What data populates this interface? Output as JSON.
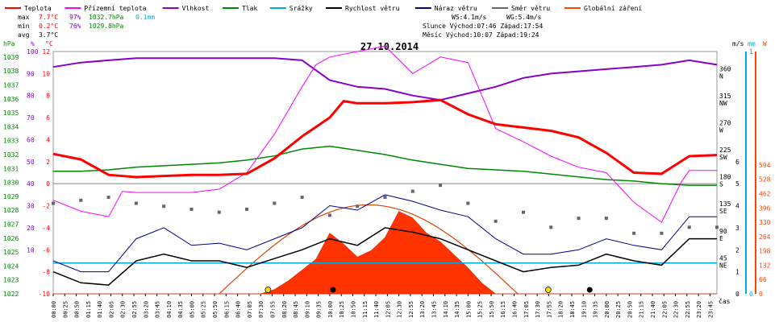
{
  "chart_data": {
    "type": "line",
    "title": "27.10.2014",
    "legend": [
      {
        "name": "Teplota",
        "color": "#ff0000"
      },
      {
        "name": "Přízemní teplota",
        "color": "#ff00ff"
      },
      {
        "name": "Vlhkost",
        "color": "#8800cc"
      },
      {
        "name": "Tlak",
        "color": "#008800"
      },
      {
        "name": "Srážky",
        "color": "#00aadd"
      },
      {
        "name": "Rychlost větru",
        "color": "#000000"
      },
      {
        "name": "Náraz větru",
        "color": "#000088"
      },
      {
        "name": "Směr větru",
        "color": "#666666"
      },
      {
        "name": "Globální záření",
        "color": "#ff4400"
      }
    ],
    "stats": {
      "max": {
        "label": "max",
        "temp": "7.7°C",
        "hum": "97%",
        "press": "1032.7hPa",
        "rain": "0.1mm"
      },
      "min": {
        "label": "min",
        "temp": "0.2°C",
        "hum": "76%",
        "press": "1029.8hPa"
      },
      "avg": {
        "label": "avg",
        "temp": "3.7°C"
      }
    },
    "wind_info": {
      "ws": "WS:4.1m/s",
      "wg": "WG:5.4m/s"
    },
    "sun_info": "Slunce Východ:07:46  Západ:17:54",
    "moon_info": "Měsíc  Východ:10:07  Západ:19:24",
    "axes": {
      "hpa_label": "hPa",
      "pct_label": "%",
      "c_label": "°C",
      "ms_label": "m/s",
      "mm_label": "mm",
      "w_label": "W",
      "time_label": "čas",
      "hpa_ticks": [
        "1039",
        "1038",
        "1037",
        "1036",
        "1035",
        "1034",
        "1033",
        "1032",
        "1031",
        "1030",
        "1029",
        "1028",
        "1027",
        "1026",
        "1025",
        "1024",
        "1023",
        "1022"
      ],
      "pct_ticks": [
        "100",
        "90",
        "80",
        "70",
        "60",
        "50",
        "40",
        "30",
        "20",
        "10"
      ],
      "temp_ticks": [
        "12",
        "10",
        "8",
        "6",
        "4",
        "2",
        "0",
        "-2",
        "-4",
        "-6",
        "-8",
        "-10"
      ],
      "dir_ticks": [
        {
          "deg": "360",
          "dir": "N"
        },
        {
          "deg": "315",
          "dir": "NW"
        },
        {
          "deg": "270",
          "dir": "W"
        },
        {
          "deg": "225",
          "dir": "SW"
        },
        {
          "deg": "180",
          "dir": "S"
        },
        {
          "deg": "135",
          "dir": "SE"
        },
        {
          "deg": "90",
          "dir": "E"
        },
        {
          "deg": "45",
          "dir": "NE"
        }
      ],
      "ms_ticks": [
        "6",
        "5",
        "4",
        "3",
        "2",
        "1",
        "0"
      ],
      "mm_ticks": [
        "1",
        "0"
      ],
      "w_ticks": [
        "594",
        "528",
        "462",
        "396",
        "330",
        "264",
        "198",
        "132",
        "66",
        "0"
      ],
      "time_ticks": [
        "00:00",
        "00:25",
        "00:50",
        "01:15",
        "01:40",
        "02:05",
        "02:30",
        "02:55",
        "03:20",
        "03:45",
        "04:10",
        "04:35",
        "05:00",
        "05:25",
        "05:50",
        "06:15",
        "06:40",
        "07:05",
        "07:30",
        "07:55",
        "08:20",
        "08:45",
        "09:10",
        "09:35",
        "10:00",
        "10:25",
        "10:50",
        "11:15",
        "11:40",
        "12:05",
        "12:30",
        "12:55",
        "13:20",
        "13:45",
        "14:10",
        "14:35",
        "15:00",
        "15:25",
        "15:50",
        "16:15",
        "16:40",
        "17:05",
        "17:30",
        "17:55",
        "18:20",
        "18:45",
        "19:10",
        "19:35",
        "20:00",
        "20:25",
        "20:50",
        "21:15",
        "21:40",
        "22:05",
        "22:30",
        "22:55",
        "23:20",
        "23:45"
      ]
    },
    "series": [
      {
        "name": "Teplota",
        "unit": "°C",
        "x": [
          0,
          1,
          2,
          3,
          4,
          5,
          6,
          7,
          8,
          9,
          10,
          10.5,
          11,
          12,
          13,
          14,
          15,
          16,
          17,
          18,
          19,
          20,
          21,
          22,
          23,
          24
        ],
        "y": [
          2.7,
          2.2,
          0.8,
          0.6,
          0.7,
          0.8,
          0.8,
          0.9,
          2.3,
          4.3,
          6.0,
          7.5,
          7.3,
          7.3,
          7.4,
          7.6,
          6.3,
          5.4,
          5.1,
          4.8,
          4.2,
          2.8,
          1.0,
          0.9,
          2.5,
          2.6
        ]
      },
      {
        "name": "Přízemní teplota",
        "unit": "°C",
        "x": [
          0,
          1,
          2,
          2.5,
          3,
          4,
          5,
          6,
          7,
          8,
          9,
          9.5,
          10,
          11,
          12,
          13,
          14,
          15,
          16,
          17,
          18,
          19,
          20,
          21,
          22,
          22.7,
          23,
          24
        ],
        "y": [
          -1.5,
          -2.5,
          -3.0,
          -0.7,
          -0.8,
          -0.8,
          -0.8,
          -0.5,
          1.0,
          4.5,
          8.8,
          10.8,
          11.5,
          12.0,
          12.5,
          10.0,
          11.5,
          11.0,
          5.0,
          3.8,
          2.5,
          1.5,
          1.0,
          -1.7,
          -3.5,
          0.1,
          1.2,
          1.2
        ]
      },
      {
        "name": "Vlhkost",
        "unit": "%",
        "x": [
          0,
          1,
          2,
          3,
          4,
          5,
          6,
          7,
          8,
          9,
          10,
          11,
          12,
          13,
          14,
          15,
          16,
          17,
          18,
          19,
          20,
          21,
          22,
          23,
          24
        ],
        "y": [
          93,
          95,
          96,
          97,
          97,
          97,
          97,
          97,
          97,
          96,
          87,
          84,
          83,
          80,
          78,
          81,
          84,
          88,
          90,
          91,
          92,
          93,
          94,
          96,
          94
        ]
      },
      {
        "name": "Tlak",
        "unit": "hPa",
        "x": [
          0,
          1,
          2,
          3,
          4,
          5,
          6,
          7,
          8,
          9,
          10,
          11,
          12,
          13,
          14,
          15,
          16,
          17,
          18,
          19,
          20,
          21,
          22,
          23,
          24
        ],
        "y": [
          1030.8,
          1030.8,
          1030.9,
          1031.1,
          1031.2,
          1031.3,
          1031.4,
          1031.6,
          1031.9,
          1032.4,
          1032.6,
          1032.3,
          1032.0,
          1031.6,
          1031.3,
          1031.0,
          1030.9,
          1030.8,
          1030.6,
          1030.4,
          1030.2,
          1030.1,
          1029.9,
          1029.8,
          1029.8
        ]
      },
      {
        "name": "Srážky",
        "unit": "mm",
        "x": [
          0,
          24
        ],
        "y": [
          0,
          0
        ]
      },
      {
        "name": "Rychlost větru",
        "unit": "m/s",
        "x": [
          0,
          1,
          2,
          3,
          4,
          5,
          6,
          7,
          8,
          9,
          10,
          11,
          12,
          13,
          14,
          15,
          16,
          17,
          18,
          19,
          20,
          21,
          22,
          23,
          24
        ],
        "y": [
          1.0,
          0.5,
          0.4,
          1.5,
          1.8,
          1.5,
          1.5,
          1.2,
          1.6,
          2.0,
          2.5,
          2.2,
          3.0,
          2.8,
          2.5,
          2.0,
          1.5,
          1.0,
          1.2,
          1.3,
          1.8,
          1.5,
          1.3,
          2.5,
          2.5
        ]
      },
      {
        "name": "Náraz větru",
        "unit": "m/s",
        "x": [
          0,
          1,
          2,
          3,
          4,
          5,
          6,
          7,
          8,
          9,
          10,
          11,
          12,
          13,
          14,
          15,
          16,
          17,
          18,
          19,
          20,
          21,
          22,
          23,
          24
        ],
        "y": [
          1.5,
          1.0,
          1.0,
          2.5,
          3.0,
          2.2,
          2.3,
          2.0,
          2.5,
          3.0,
          4.0,
          3.8,
          4.5,
          4.2,
          3.8,
          3.5,
          2.5,
          1.8,
          1.8,
          2.0,
          2.5,
          2.2,
          2.0,
          3.5,
          3.5
        ]
      },
      {
        "name": "Směr větru",
        "unit": "°",
        "x": [
          0,
          1,
          2,
          3,
          4,
          5,
          6,
          7,
          8,
          9,
          10,
          11,
          12,
          13,
          14,
          15,
          16,
          17,
          18,
          19,
          20,
          21,
          22,
          23,
          24
        ],
        "y": [
          140,
          145,
          150,
          140,
          135,
          130,
          125,
          130,
          140,
          150,
          120,
          135,
          150,
          160,
          170,
          140,
          110,
          125,
          100,
          115,
          115,
          90,
          90,
          100,
          100
        ]
      },
      {
        "name": "Globální záření",
        "unit": "W",
        "x": [
          0,
          7.5,
          8,
          8.5,
          9,
          9.5,
          10,
          10.5,
          11,
          11.5,
          12,
          12.5,
          13,
          13.5,
          14,
          14.5,
          15,
          15.5,
          16,
          24
        ],
        "y": [
          0,
          0,
          20,
          60,
          110,
          160,
          280,
          230,
          170,
          200,
          260,
          380,
          350,
          280,
          240,
          180,
          120,
          50,
          0,
          0
        ]
      }
    ],
    "theoretical_radiation_peak_W": 410,
    "xlim": [
      0,
      24
    ],
    "ylim_temp": [
      -10,
      12
    ]
  }
}
